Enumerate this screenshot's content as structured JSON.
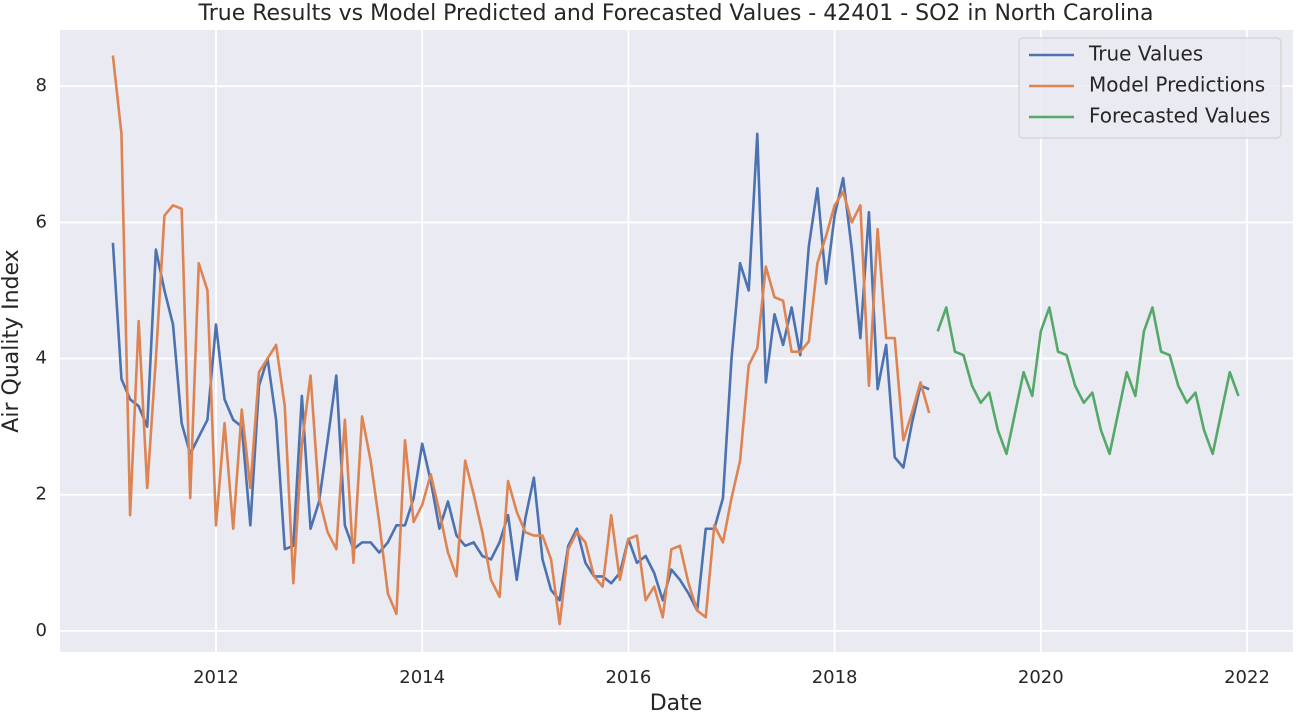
{
  "chart_data": {
    "type": "line",
    "title": "True Results vs Model Predicted and Forecasted Values - 42401 - SO2 in North Carolina",
    "x_label": "Date",
    "y_label": "Air Quality Index",
    "x": [
      2011,
      2011.083,
      2011.167,
      2011.25,
      2011.333,
      2011.417,
      2011.5,
      2011.583,
      2011.667,
      2011.75,
      2011.833,
      2011.917,
      2012,
      2012.083,
      2012.167,
      2012.25,
      2012.333,
      2012.417,
      2012.5,
      2012.583,
      2012.667,
      2012.75,
      2012.833,
      2012.917,
      2013,
      2013.083,
      2013.167,
      2013.25,
      2013.333,
      2013.417,
      2013.5,
      2013.583,
      2013.667,
      2013.75,
      2013.833,
      2013.917,
      2014,
      2014.083,
      2014.167,
      2014.25,
      2014.333,
      2014.417,
      2014.5,
      2014.583,
      2014.667,
      2014.75,
      2014.833,
      2014.917,
      2015,
      2015.083,
      2015.167,
      2015.25,
      2015.333,
      2015.417,
      2015.5,
      2015.583,
      2015.667,
      2015.75,
      2015.833,
      2015.917,
      2016,
      2016.083,
      2016.167,
      2016.25,
      2016.333,
      2016.417,
      2016.5,
      2016.583,
      2016.667,
      2016.75,
      2016.833,
      2016.917,
      2017,
      2017.083,
      2017.167,
      2017.25,
      2017.333,
      2017.417,
      2017.5,
      2017.583,
      2017.667,
      2017.75,
      2017.833,
      2017.917,
      2018,
      2018.083,
      2018.167,
      2018.25,
      2018.333,
      2018.417,
      2018.5,
      2018.583,
      2018.667,
      2018.75,
      2018.833,
      2018.917,
      2019,
      2019.083,
      2019.167,
      2019.25,
      2019.333,
      2019.417,
      2019.5,
      2019.583,
      2019.667,
      2019.75,
      2019.833,
      2019.917,
      2020,
      2020.083,
      2020.167,
      2020.25,
      2020.333,
      2020.417,
      2020.5,
      2020.583,
      2020.667,
      2020.75,
      2020.833,
      2020.917,
      2021,
      2021.083,
      2021.167,
      2021.25,
      2021.333,
      2021.417,
      2021.5,
      2021.583,
      2021.667,
      2021.75,
      2021.833,
      2021.917
    ],
    "series": [
      {
        "name": "True Values",
        "color": "#4c72b0",
        "values": [
          5.7,
          3.7,
          3.4,
          3.3,
          3.0,
          5.6,
          5.0,
          4.5,
          3.05,
          2.6,
          2.85,
          3.1,
          4.5,
          3.4,
          3.1,
          3.0,
          1.55,
          3.6,
          4.0,
          3.1,
          1.2,
          1.25,
          3.45,
          1.5,
          1.9,
          2.8,
          3.75,
          1.55,
          1.2,
          1.3,
          1.3,
          1.15,
          1.3,
          1.55,
          1.55,
          1.95,
          2.75,
          2.2,
          1.5,
          1.9,
          1.4,
          1.25,
          1.3,
          1.1,
          1.05,
          1.3,
          1.7,
          0.75,
          1.65,
          2.25,
          1.05,
          0.6,
          0.45,
          1.25,
          1.5,
          1.0,
          0.8,
          0.8,
          0.7,
          0.85,
          1.35,
          1.0,
          1.1,
          0.85,
          0.45,
          0.9,
          0.75,
          0.55,
          0.3,
          1.5,
          1.5,
          1.95,
          4.0,
          5.4,
          5.0,
          7.3,
          3.65,
          4.65,
          4.2,
          4.75,
          4.05,
          5.65,
          6.5,
          5.1,
          6.1,
          6.65,
          5.6,
          4.3,
          6.15,
          3.55,
          4.2,
          2.55,
          2.4,
          3.05,
          3.6,
          3.55,
          null,
          null,
          null,
          null,
          null,
          null,
          null,
          null,
          null,
          null,
          null,
          null,
          null,
          null,
          null,
          null,
          null,
          null,
          null,
          null,
          null,
          null,
          null,
          null,
          null,
          null,
          null,
          null,
          null,
          null,
          null,
          null,
          null,
          null,
          null,
          null
        ]
      },
      {
        "name": "Model Predictions",
        "color": "#dd8452",
        "values": [
          8.45,
          7.3,
          1.7,
          4.55,
          2.1,
          4.0,
          6.1,
          6.25,
          6.2,
          1.95,
          5.4,
          5.0,
          1.55,
          3.05,
          1.5,
          3.25,
          2.1,
          3.8,
          4.0,
          4.2,
          3.3,
          0.7,
          2.75,
          3.75,
          1.95,
          1.45,
          1.2,
          3.1,
          1.0,
          3.15,
          2.5,
          1.6,
          0.55,
          0.25,
          2.8,
          1.6,
          1.85,
          2.3,
          1.75,
          1.15,
          0.8,
          2.5,
          2.0,
          1.45,
          0.75,
          0.5,
          2.2,
          1.75,
          1.45,
          1.4,
          1.4,
          1.05,
          0.1,
          1.2,
          1.45,
          1.3,
          0.8,
          0.65,
          1.7,
          0.75,
          1.35,
          1.4,
          0.45,
          0.65,
          0.2,
          1.2,
          1.25,
          0.7,
          0.3,
          0.2,
          1.55,
          1.3,
          1.95,
          2.5,
          3.9,
          4.15,
          5.35,
          4.9,
          4.85,
          4.1,
          4.1,
          4.25,
          5.4,
          5.8,
          6.25,
          6.45,
          6.0,
          6.25,
          3.6,
          5.9,
          4.3,
          4.3,
          2.8,
          3.2,
          3.65,
          3.2,
          null,
          null,
          null,
          null,
          null,
          null,
          null,
          null,
          null,
          null,
          null,
          null,
          null,
          null,
          null,
          null,
          null,
          null,
          null,
          null,
          null,
          null,
          null,
          null,
          null,
          null,
          null,
          null,
          null,
          null,
          null,
          null,
          null,
          null,
          null,
          null
        ]
      },
      {
        "name": "Forecasted Values",
        "color": "#55a868",
        "values": [
          null,
          null,
          null,
          null,
          null,
          null,
          null,
          null,
          null,
          null,
          null,
          null,
          null,
          null,
          null,
          null,
          null,
          null,
          null,
          null,
          null,
          null,
          null,
          null,
          null,
          null,
          null,
          null,
          null,
          null,
          null,
          null,
          null,
          null,
          null,
          null,
          null,
          null,
          null,
          null,
          null,
          null,
          null,
          null,
          null,
          null,
          null,
          null,
          null,
          null,
          null,
          null,
          null,
          null,
          null,
          null,
          null,
          null,
          null,
          null,
          null,
          null,
          null,
          null,
          null,
          null,
          null,
          null,
          null,
          null,
          null,
          null,
          null,
          null,
          null,
          null,
          null,
          null,
          null,
          null,
          null,
          null,
          null,
          null,
          null,
          null,
          null,
          null,
          null,
          null,
          null,
          null,
          null,
          null,
          null,
          null,
          4.4,
          4.75,
          4.1,
          4.05,
          3.6,
          3.35,
          3.5,
          2.95,
          2.6,
          3.2,
          3.8,
          3.45,
          4.4,
          4.75,
          4.1,
          4.05,
          3.6,
          3.35,
          3.5,
          2.95,
          2.6,
          3.2,
          3.8,
          3.45,
          4.4,
          4.75,
          4.1,
          4.05,
          3.6,
          3.35,
          3.5,
          2.95,
          2.6,
          3.2,
          3.8,
          3.45
        ]
      }
    ],
    "xlim": [
      2010.487,
      2022.446
    ],
    "xticks": [
      2012,
      2014,
      2016,
      2018,
      2020,
      2022
    ],
    "ylim": [
      -0.31,
      8.825
    ],
    "yticks": [
      0,
      2,
      4,
      6,
      8
    ],
    "grid": true,
    "legend": "upper right"
  }
}
